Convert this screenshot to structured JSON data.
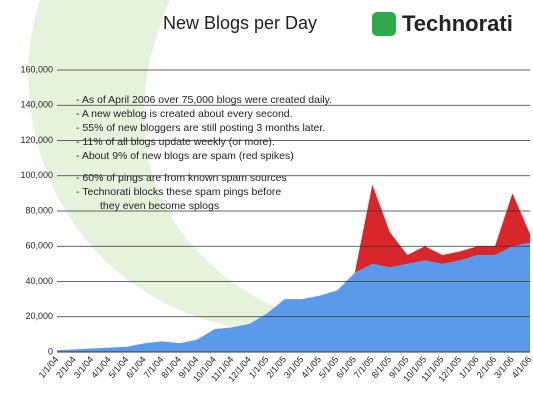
{
  "chart_data": {
    "type": "area",
    "title": "New Blogs per Day",
    "brand": "Technorati",
    "annotations": [
      "- As of April 2006 over 75,000 blogs were created daily.",
      "- A new weblog is created about every second.",
      "- 55% of new bloggers are still posting 3 months later.",
      "- 11% of all blogs update weekly (or more).",
      "- About 9% of new blogs are spam (red spikes)",
      "- 60% of pings are from known spam sources",
      "- Technorati blocks these spam pings before",
      "they even become splogs"
    ],
    "categories": [
      "1/1/04",
      "2/1/04",
      "3/1/04",
      "4/1/04",
      "5/1/04",
      "6/1/04",
      "7/1/04",
      "8/1/04",
      "9/1/04",
      "10/1/04",
      "11/1/04",
      "12/1/04",
      "1/1/05",
      "2/1/05",
      "3/1/05",
      "4/1/05",
      "5/1/05",
      "6/1/05",
      "7/1/05",
      "8/1/05",
      "9/1/05",
      "10/1/05",
      "11/1/05",
      "12/1/05",
      "1/1/06",
      "2/1/06",
      "3/1/06",
      "4/1/06"
    ],
    "series": [
      {
        "color": "#5b9ae8",
        "values": [
          1000,
          1500,
          2000,
          2500,
          3000,
          5000,
          6000,
          5000,
          7000,
          13000,
          14000,
          16000,
          22000,
          30000,
          30000,
          32000,
          35000,
          45000,
          50000,
          48000,
          50000,
          52000,
          50000,
          52000,
          55000,
          55000,
          60000,
          62000
        ]
      },
      {
        "color": "#d8262a",
        "values": [
          0,
          0,
          0,
          0,
          0,
          0,
          0,
          0,
          0,
          0,
          0,
          0,
          0,
          0,
          0,
          0,
          0,
          0,
          45000,
          20000,
          5000,
          8000,
          5000,
          5000,
          5000,
          5000,
          30000,
          5000
        ]
      }
    ],
    "ylim": [
      0,
      160000
    ],
    "yticks": [
      0,
      {
        "value": 20000,
        "label": "20,000"
      },
      {
        "value": 40000,
        "label": "40,000"
      },
      {
        "value": 60000,
        "label": "60,000"
      },
      {
        "value": 80000,
        "label": "80,000"
      },
      {
        "value": 100000,
        "label": "100,000"
      },
      {
        "value": 120000,
        "label": "120,000"
      },
      {
        "value": 140000,
        "label": "140,000"
      },
      {
        "value": 160000,
        "label": "160,000"
      }
    ],
    "grid": true
  }
}
